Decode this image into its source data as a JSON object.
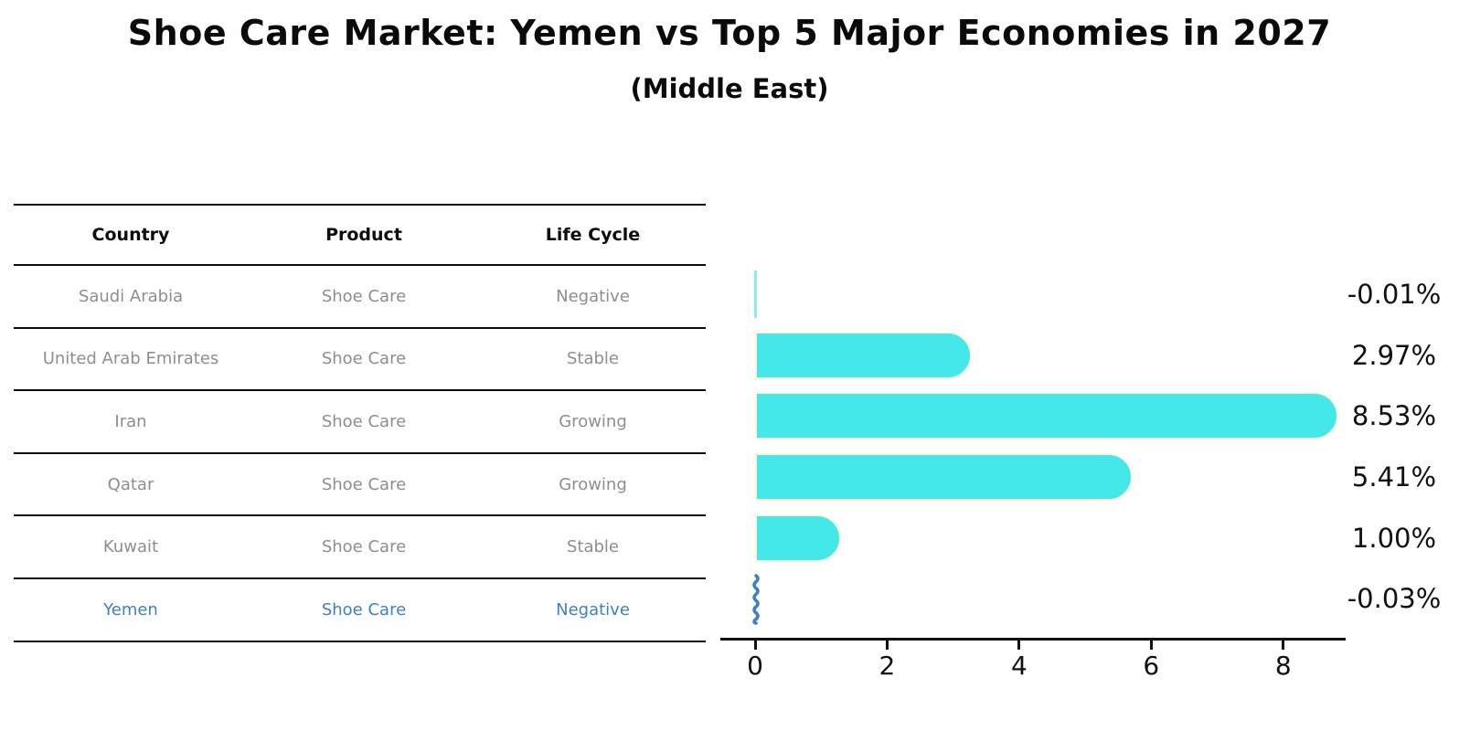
{
  "title": "Shoe Care Market: Yemen vs Top 5 Major Economies in 2027",
  "subtitle": "(Middle East)",
  "table": {
    "headers": [
      "Country",
      "Product",
      "Life Cycle"
    ],
    "rows": [
      {
        "country": "Saudi Arabia",
        "product": "Shoe Care",
        "life_cycle": "Negative",
        "highlight": false
      },
      {
        "country": "United Arab Emirates",
        "product": "Shoe Care",
        "life_cycle": "Stable",
        "highlight": false
      },
      {
        "country": "Iran",
        "product": "Shoe Care",
        "life_cycle": "Growing",
        "highlight": false
      },
      {
        "country": "Qatar",
        "product": "Shoe Care",
        "life_cycle": "Growing",
        "highlight": false
      },
      {
        "country": "Kuwait",
        "product": "Shoe Care",
        "life_cycle": "Stable",
        "highlight": false
      },
      {
        "country": "Yemen",
        "product": "Shoe Care",
        "life_cycle": "Negative",
        "highlight": true
      }
    ]
  },
  "chart_data": {
    "type": "bar",
    "orientation": "horizontal",
    "title": "Shoe Care Market: Yemen vs Top 5 Major Economies in 2027",
    "subtitle": "(Middle East)",
    "categories": [
      "Saudi Arabia",
      "United Arab Emirates",
      "Iran",
      "Qatar",
      "Kuwait",
      "Yemen"
    ],
    "values": [
      -0.01,
      2.97,
      8.53,
      5.41,
      1.0,
      -0.03
    ],
    "value_labels": [
      "-0.01%",
      "2.97%",
      "8.53%",
      "5.41%",
      "1.00%",
      "-0.03%"
    ],
    "xlabel": "",
    "ylabel": "",
    "xlim": [
      0,
      9
    ],
    "xticks": [
      0,
      2,
      4,
      6,
      8
    ],
    "xtick_labels": [
      "0",
      "2",
      "4",
      "6",
      "8"
    ],
    "grid": false,
    "legend": false
  },
  "colors": {
    "bar_fill": "#45e8e8",
    "bar_edge": "#fbf7d5",
    "near_zero_bar": "#8fecec",
    "highlight_blue": "#3e80c4",
    "table_text_gray": "#8e8e8e",
    "axis_black": "#111111"
  }
}
